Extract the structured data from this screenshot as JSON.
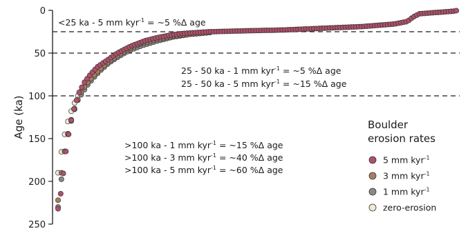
{
  "chart_data": {
    "type": "scatter",
    "ylabel": "Age (ka)",
    "ylim": [
      0,
      250
    ],
    "y_inverted": true,
    "yticks": [
      "0",
      "50",
      "100",
      "150",
      "200",
      "250"
    ],
    "x_axis_shown": false,
    "legend": {
      "title_line1": "Boulder",
      "title_line2": "erosion rates",
      "placement": "bottom-right"
    },
    "reference_lines": [
      25,
      50,
      100
    ],
    "annotations": [
      {
        "pre": "<25 ka - 5 mm kyr",
        "sup": "-1",
        "post": " = ~5 %Δ age"
      },
      {
        "pre": "25 - 50 ka - 1 mm kyr",
        "sup": "-1",
        "post": " = ~5 %Δ  age"
      },
      {
        "pre": "25 - 50 ka - 5 mm kyr",
        "sup": "-1",
        "post": " = ~15 %Δ age"
      },
      {
        "pre": ">100 ka - 1 mm kyr",
        "sup": "-1",
        "post": " = ~15 %Δ age"
      },
      {
        "pre": ">100 ka - 3 mm kyr",
        "sup": "-1",
        "post": " = ~40 %Δ age"
      },
      {
        "pre": ">100 ka - 5 mm kyr",
        "sup": "-1",
        "post": " = ~60 %Δ age"
      }
    ],
    "series": [
      {
        "name_pre": "5 mm kyr",
        "name_sup": "-1",
        "color": "#b0506b",
        "curve": [
          [
            0,
            232
          ],
          [
            5,
            210
          ],
          [
            12,
            165
          ],
          [
            18,
            135
          ],
          [
            25,
            112
          ],
          [
            32,
            96
          ],
          [
            40,
            84
          ],
          [
            50,
            74
          ],
          [
            60,
            66
          ],
          [
            75,
            58
          ],
          [
            90,
            50
          ],
          [
            110,
            42
          ],
          [
            130,
            36
          ],
          [
            150,
            32
          ],
          [
            170,
            29
          ],
          [
            190,
            27
          ],
          [
            230,
            25
          ],
          [
            280,
            24
          ],
          [
            340,
            23
          ],
          [
            400,
            21
          ],
          [
            460,
            19
          ],
          [
            510,
            16
          ],
          [
            530,
            13
          ],
          [
            538,
            8
          ],
          [
            548,
            4
          ],
          [
            600,
            1
          ],
          [
            606,
            0
          ]
        ]
      },
      {
        "name_pre": "3 mm kyr",
        "name_sup": "-1",
        "color": "#a97e5c",
        "curve": [
          [
            0,
            222
          ],
          [
            5,
            190
          ],
          [
            10,
            165
          ],
          [
            16,
            140
          ],
          [
            22,
            122
          ],
          [
            28,
            108
          ],
          [
            34,
            97
          ],
          [
            42,
            87
          ],
          [
            52,
            78
          ],
          [
            62,
            70
          ],
          [
            75,
            61
          ],
          [
            90,
            53
          ],
          [
            105,
            46
          ],
          [
            125,
            39
          ],
          [
            150,
            34
          ],
          [
            175,
            30
          ],
          [
            200,
            28
          ],
          [
            230,
            26
          ]
        ]
      },
      {
        "name_pre": "1 mm kyr",
        "name_sup": "-1",
        "color": "#8a8a8a",
        "curve": [
          [
            0,
            230
          ],
          [
            4,
            205
          ],
          [
            8,
            175
          ],
          [
            12,
            155
          ],
          [
            18,
            135
          ],
          [
            24,
            118
          ],
          [
            30,
            105
          ],
          [
            38,
            95
          ],
          [
            46,
            86
          ],
          [
            56,
            77
          ],
          [
            66,
            69
          ],
          [
            78,
            61
          ],
          [
            92,
            54
          ],
          [
            108,
            47
          ],
          [
            128,
            41
          ],
          [
            150,
            36
          ],
          [
            175,
            31
          ],
          [
            200,
            28
          ],
          [
            230,
            26
          ]
        ]
      },
      {
        "name_pre": "zero-erosion",
        "name_sup": "",
        "color": "#f2e8d6",
        "curve": [
          [
            0,
            190
          ],
          [
            4,
            170
          ],
          [
            8,
            152
          ],
          [
            12,
            138
          ],
          [
            18,
            122
          ],
          [
            24,
            110
          ],
          [
            30,
            100
          ],
          [
            38,
            91
          ],
          [
            46,
            83
          ],
          [
            56,
            75
          ],
          [
            66,
            68
          ],
          [
            78,
            60
          ],
          [
            92,
            53
          ],
          [
            108,
            46
          ],
          [
            128,
            40
          ],
          [
            150,
            35
          ],
          [
            175,
            31
          ],
          [
            200,
            28
          ],
          [
            230,
            26
          ]
        ]
      }
    ]
  }
}
